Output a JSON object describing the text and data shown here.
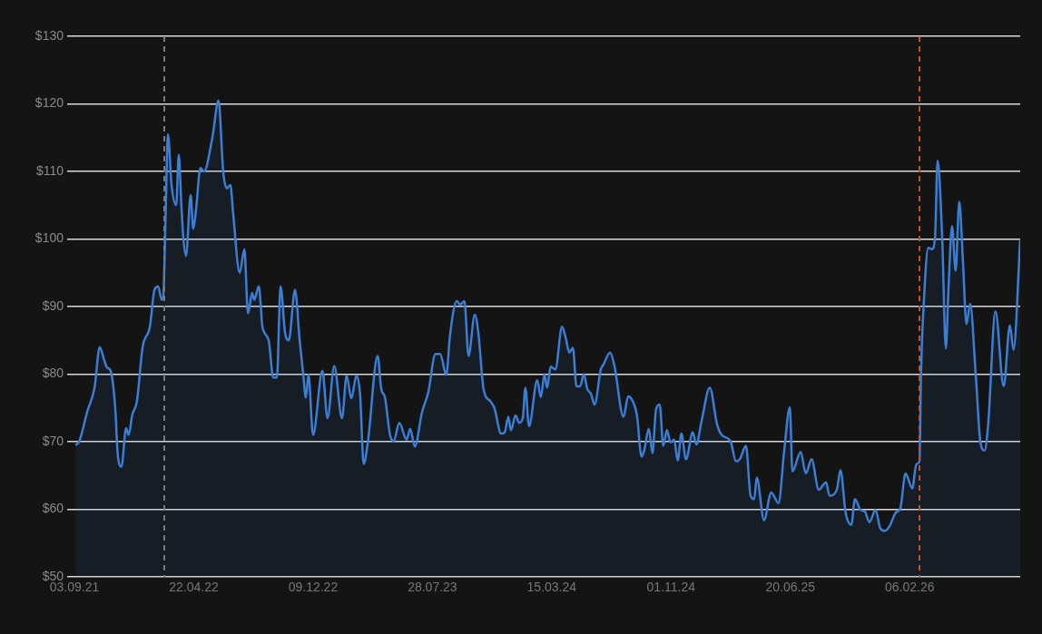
{
  "chart_data": {
    "type": "area",
    "x": [
      "2021-09-05",
      "2021-09-12",
      "2021-09-28",
      "2021-10-12",
      "2021-10-22",
      "2021-10-31",
      "2021-11-05",
      "2021-11-12",
      "2021-11-21",
      "2021-11-26",
      "2021-12-03",
      "2021-12-12",
      "2021-12-17",
      "2021-12-24",
      "2022-01-02",
      "2022-01-13",
      "2022-01-27",
      "2022-02-05",
      "2022-02-12",
      "2022-02-19",
      "2022-02-22",
      "2022-02-27",
      "2022-03-03",
      "2022-03-10",
      "2022-03-19",
      "2022-03-24",
      "2022-03-29",
      "2022-04-02",
      "2022-04-07",
      "2022-04-16",
      "2022-04-21",
      "2022-04-26",
      "2022-05-05",
      "2022-05-12",
      "2022-05-28",
      "2022-06-09",
      "2022-06-18",
      "2022-06-25",
      "2022-07-02",
      "2022-07-07",
      "2022-07-20",
      "2022-07-29",
      "2022-08-05",
      "2022-08-13",
      "2022-08-17",
      "2022-08-26",
      "2022-09-02",
      "2022-09-14",
      "2022-09-23",
      "2022-09-30",
      "2022-10-07",
      "2022-10-16",
      "2022-10-23",
      "2022-11-04",
      "2022-11-13",
      "2022-11-20",
      "2022-11-25",
      "2022-11-30",
      "2022-12-09",
      "2022-12-27",
      "2023-01-06",
      "2023-01-19",
      "2023-02-03",
      "2023-02-12",
      "2023-02-21",
      "2023-03-03",
      "2023-03-10",
      "2023-03-17",
      "2023-03-25",
      "2023-04-13",
      "2023-04-20",
      "2023-04-27",
      "2023-05-07",
      "2023-05-14",
      "2023-05-25",
      "2023-06-08",
      "2023-06-15",
      "2023-06-24",
      "2023-07-08",
      "2023-07-20",
      "2023-08-03",
      "2023-08-12",
      "2023-08-24",
      "2023-08-31",
      "2023-09-13",
      "2023-09-20",
      "2023-09-28",
      "2023-10-06",
      "2023-10-18",
      "2023-10-25",
      "2023-11-04",
      "2023-11-17",
      "2023-11-25",
      "2023-12-08",
      "2023-12-15",
      "2023-12-22",
      "2023-12-27",
      "2024-01-05",
      "2024-01-12",
      "2024-01-19",
      "2024-01-24",
      "2024-01-31",
      "2024-02-16",
      "2024-02-23",
      "2024-03-01",
      "2024-03-06",
      "2024-03-13",
      "2024-03-22",
      "2024-04-04",
      "2024-04-11",
      "2024-04-18",
      "2024-04-25",
      "2024-05-02",
      "2024-05-09",
      "2024-05-16",
      "2024-05-23",
      "2024-05-30",
      "2024-06-06",
      "2024-06-18",
      "2024-06-23",
      "2024-07-06",
      "2024-07-14",
      "2024-08-01",
      "2024-08-10",
      "2024-08-15",
      "2024-08-27",
      "2024-09-05",
      "2024-09-10",
      "2024-09-19",
      "2024-09-26",
      "2024-10-03",
      "2024-10-10",
      "2024-10-17",
      "2024-10-24",
      "2024-10-31",
      "2024-11-07",
      "2024-11-14",
      "2024-11-21",
      "2024-11-30",
      "2024-12-13",
      "2024-12-20",
      "2024-12-30",
      "2025-01-15",
      "2025-01-29",
      "2025-02-07",
      "2025-02-24",
      "2025-03-07",
      "2025-03-14",
      "2025-03-26",
      "2025-04-04",
      "2025-04-11",
      "2025-04-16",
      "2025-04-30",
      "2025-05-14",
      "2025-05-28",
      "2025-06-08",
      "2025-06-19",
      "2025-06-24",
      "2025-07-10",
      "2025-07-20",
      "2025-07-31",
      "2025-08-14",
      "2025-08-28",
      "2025-09-04",
      "2025-09-18",
      "2025-09-25",
      "2025-10-05",
      "2025-10-16",
      "2025-10-23",
      "2025-11-03",
      "2025-11-11",
      "2025-11-20",
      "2025-12-02",
      "2025-12-11",
      "2025-12-20",
      "2025-12-29",
      "2026-01-10",
      "2026-01-19",
      "2026-01-29",
      "2026-02-11",
      "2026-02-19",
      "2026-02-25",
      "2026-02-28",
      "2026-03-06",
      "2026-03-14",
      "2026-03-21",
      "2026-03-27",
      "2026-04-01",
      "2026-04-10",
      "2026-04-17",
      "2026-04-22",
      "2026-04-29",
      "2026-05-06",
      "2026-05-13",
      "2026-05-20",
      "2026-05-27",
      "2026-06-03",
      "2026-06-14",
      "2026-06-23",
      "2026-07-01",
      "2026-07-08",
      "2026-07-22",
      "2026-08-07",
      "2026-08-19",
      "2026-08-26",
      "2026-09-08"
    ],
    "series": [
      {
        "color": "#3a7fd5",
        "values": [
          69.5,
          70,
          74.5,
          78,
          84,
          82,
          81,
          80.5,
          75,
          68,
          66.3,
          72,
          71,
          74,
          76,
          84,
          87,
          92.5,
          93,
          91,
          91.5,
          105,
          115.5,
          108,
          105,
          112.5,
          105,
          100,
          97.5,
          106.5,
          101.5,
          104,
          110.5,
          110,
          115,
          120.5,
          110,
          107.5,
          108,
          104,
          95,
          98.5,
          89,
          92,
          91,
          93,
          87,
          85,
          79.5,
          79.5,
          93,
          86,
          85,
          92.5,
          85,
          80,
          76.5,
          80,
          71,
          80.5,
          73.5,
          81.2,
          73.5,
          79.8,
          76.4,
          79.8,
          77,
          66.7,
          69.9,
          82.7,
          77.8,
          76.6,
          71,
          70.1,
          72.8,
          70.3,
          71.9,
          69.3,
          74.4,
          77.3,
          83,
          83,
          79.9,
          85.7,
          90.8,
          90.3,
          90.8,
          82.7,
          88.8,
          86.1,
          77.8,
          76,
          75,
          71.2,
          71.4,
          73.7,
          71.7,
          73.9,
          72.8,
          73.5,
          78,
          72.3,
          79.1,
          76.6,
          80,
          78,
          81.1,
          80.7,
          87,
          85.4,
          83.2,
          83.9,
          78.2,
          78.2,
          80,
          77.8,
          77.1,
          75.5,
          80.7,
          81.4,
          83.2,
          81.4,
          73.7,
          76.7,
          76.5,
          73.9,
          67.8,
          68.7,
          71.9,
          68.3,
          74.8,
          75.5,
          69.4,
          71.7,
          69.9,
          70.3,
          67.2,
          71.2,
          67.4,
          71.4,
          69.6,
          73,
          78,
          72.6,
          71,
          70.1,
          67.1,
          67.4,
          69.4,
          62,
          61.5,
          64.7,
          58.4,
          62.5,
          60.9,
          68.6,
          75.1,
          65.6,
          68.5,
          65.3,
          67.4,
          62.9,
          64,
          62,
          62.9,
          65.8,
          59.5,
          57.7,
          61.5,
          59.9,
          59.7,
          58.1,
          59.9,
          57.2,
          56.8,
          57.5,
          59.5,
          60.2,
          65.3,
          63.1,
          66.7,
          67.1,
          80.2,
          91.5,
          98.7,
          98.5,
          100.1,
          111.6,
          100.1,
          83.8,
          92.4,
          101.9,
          95.3,
          105.5,
          96.9,
          87.4,
          90.4,
          79.8,
          69.9,
          68.7,
          72.6,
          89.3,
          78.2,
          87.2,
          83.6,
          99.9
        ]
      }
    ],
    "xlim": [
      "2021-09-03",
      "2026-09-08"
    ],
    "xticks": [
      {
        "value": "2021-09-03",
        "label": "03.09.21"
      },
      {
        "value": "2022-04-22",
        "label": "22.04.22"
      },
      {
        "value": "2022-12-09",
        "label": "09.12.22"
      },
      {
        "value": "2023-07-28",
        "label": "28.07.23"
      },
      {
        "value": "2024-03-15",
        "label": "15.03.24"
      },
      {
        "value": "2024-11-01",
        "label": "01.11.24"
      },
      {
        "value": "2025-06-20",
        "label": "20.06.25"
      },
      {
        "value": "2026-02-06",
        "label": "06.02.26"
      }
    ],
    "ylim": [
      50,
      130
    ],
    "yticks": [
      {
        "value": 50,
        "label": "$50"
      },
      {
        "value": 60,
        "label": "$60"
      },
      {
        "value": 70,
        "label": "$70"
      },
      {
        "value": 80,
        "label": "$80"
      },
      {
        "value": 90,
        "label": "$90"
      },
      {
        "value": 100,
        "label": "$100"
      },
      {
        "value": 110,
        "label": "$110"
      },
      {
        "value": 120,
        "label": "$120"
      },
      {
        "value": 130,
        "label": "$130"
      }
    ],
    "grid": "y",
    "ref_lines": [
      {
        "axis": "x",
        "value": "2022-02-24",
        "color": "#7a7a7a",
        "line_style": "dashed"
      },
      {
        "axis": "x",
        "value": "2026-02-25",
        "color": "#c2532c",
        "line_style": "dashed"
      }
    ]
  }
}
